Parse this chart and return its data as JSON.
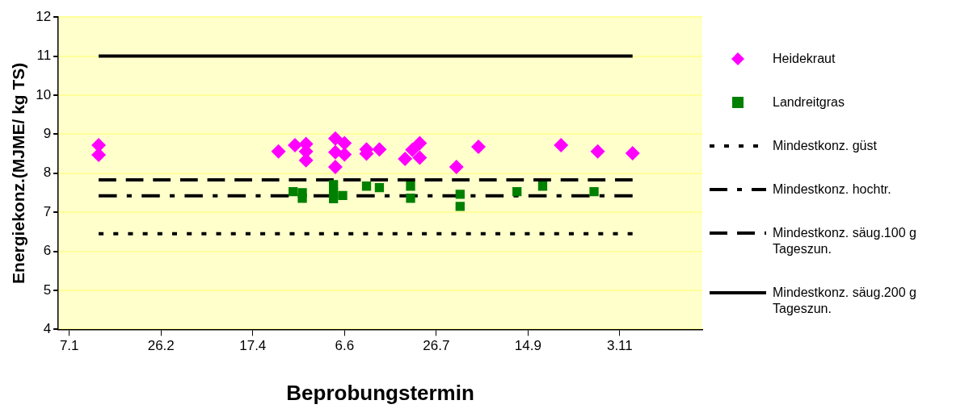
{
  "chart_data": {
    "type": "scatter",
    "xlabel": "Beprobungstermin",
    "ylabel": "Energiekonz.(MJME/ kg TS)",
    "xlim": [
      "--01-01",
      "--12-18"
    ],
    "xticks": [
      {
        "value": "--01-07",
        "label": "7.1"
      },
      {
        "value": "--02-26",
        "label": "26.2"
      },
      {
        "value": "--04-17",
        "label": "17.4"
      },
      {
        "value": "--06-06",
        "label": "6.6"
      },
      {
        "value": "--07-26",
        "label": "26.7"
      },
      {
        "value": "--09-14",
        "label": "14.9"
      },
      {
        "value": "--11-03",
        "label": "3.11"
      }
    ],
    "ylim": [
      4,
      12
    ],
    "yticks": [
      4,
      5,
      6,
      7,
      8,
      9,
      10,
      11,
      12
    ],
    "grid": "y",
    "legend": "right",
    "series": [
      {
        "name": "Heidekraut",
        "type": "scatter",
        "marker": "diamond",
        "color": "#ff00ff",
        "x": [
          "--01-23",
          "--01-23",
          "--05-01",
          "--05-10",
          "--05-16",
          "--05-16",
          "--05-16",
          "--06-01",
          "--06-01",
          "--06-01",
          "--06-06",
          "--06-06",
          "--06-18",
          "--06-18",
          "--06-25",
          "--07-09",
          "--07-17",
          "--07-17",
          "--07-13",
          "--08-06",
          "--08-18",
          "--10-02",
          "--10-22",
          "--11-10"
        ],
        "values": [
          8.72,
          8.47,
          8.56,
          8.72,
          8.75,
          8.56,
          8.33,
          8.89,
          8.54,
          8.16,
          8.77,
          8.48,
          8.61,
          8.5,
          8.61,
          8.37,
          8.77,
          8.4,
          8.6,
          8.16,
          8.68,
          8.72,
          8.56,
          8.51
        ]
      },
      {
        "name": "Landreitgras",
        "type": "scatter",
        "marker": "square",
        "color": "#008000",
        "x": [
          "--05-09",
          "--05-14",
          "--05-14",
          "--05-31",
          "--05-31",
          "--05-31",
          "--06-05",
          "--06-18",
          "--06-25",
          "--07-12",
          "--07-12",
          "--08-08",
          "--08-08",
          "--09-08",
          "--09-22",
          "--10-20"
        ],
        "values": [
          7.53,
          7.5,
          7.36,
          7.71,
          7.5,
          7.35,
          7.43,
          7.67,
          7.63,
          7.67,
          7.36,
          7.46,
          7.15,
          7.53,
          7.67,
          7.53
        ]
      },
      {
        "name": "Mindestkonz. güst",
        "type": "line",
        "line_style": "dotted",
        "color": "#000000",
        "x": [
          "--01-23",
          "--11-10"
        ],
        "values": [
          6.45,
          6.45
        ]
      },
      {
        "name": "Mindestkonz. hochtr.",
        "type": "line",
        "line_style": "dashdot",
        "color": "#000000",
        "x": [
          "--01-23",
          "--11-10"
        ],
        "values": [
          7.42,
          7.42
        ]
      },
      {
        "name": "Mindestkonz. säug.100 g Tageszun.",
        "type": "line",
        "line_style": "dashed",
        "color": "#000000",
        "x": [
          "--01-23",
          "--11-10"
        ],
        "values": [
          7.83,
          7.83
        ]
      },
      {
        "name": "Mindestkonz. säug.200 g Tageszun.",
        "type": "line",
        "line_style": "solid",
        "color": "#000000",
        "x": [
          "--01-23",
          "--11-10"
        ],
        "values": [
          11,
          11
        ]
      }
    ]
  }
}
